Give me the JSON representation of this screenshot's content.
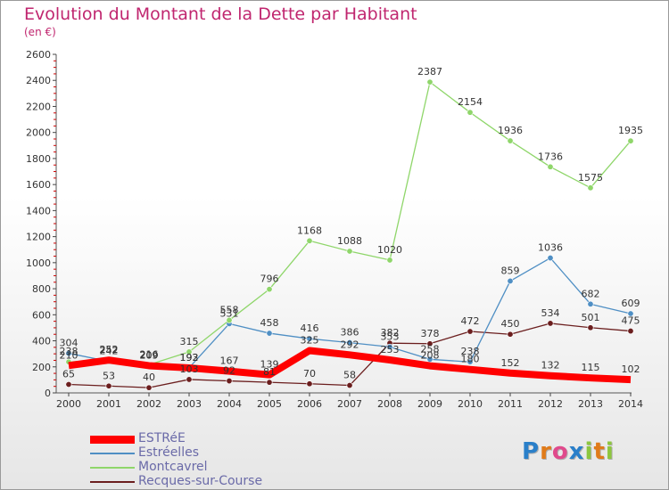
{
  "title": "Evolution du Montant de la Dette par Habitant",
  "unit": "(en €)",
  "logo_text": "Proxiti",
  "chart_data": {
    "type": "line",
    "x": [
      2000,
      2001,
      2002,
      2003,
      2004,
      2005,
      2006,
      2007,
      2008,
      2009,
      2010,
      2011,
      2012,
      2013,
      2014
    ],
    "ylim": [
      0,
      2600
    ],
    "yticks": [
      0,
      200,
      400,
      600,
      800,
      1000,
      1200,
      1400,
      1600,
      1800,
      2000,
      2200,
      2400,
      2600
    ],
    "grid": false,
    "legend_position": "bottom-left",
    "series": [
      {
        "name": "Recques-sur-Course",
        "color": "#6b1e1e",
        "values": [
          65,
          53,
          40,
          103,
          92,
          81,
          70,
          58,
          382,
          378,
          472,
          450,
          534,
          501,
          475
        ]
      },
      {
        "name": "Estréelles",
        "color": "#4f8fc4",
        "values": [
          304,
          242,
          209,
          193,
          531,
          458,
          416,
          386,
          353,
          258,
          238,
          859,
          1036,
          682,
          609
        ]
      },
      {
        "name": "Montcavrel",
        "color": "#8fd66a",
        "values": [
          238,
          252,
          216,
          315,
          558,
          796,
          1168,
          1088,
          1020,
          2387,
          2154,
          1936,
          1736,
          1575,
          1935
        ]
      },
      {
        "name": "ESTRéE",
        "color": "#ff0000",
        "values": [
          210,
          252,
          209,
          192,
          167,
          139,
          325,
          292,
          253,
          208,
          180,
          152,
          132,
          115,
          102
        ]
      }
    ],
    "labels": [
      {
        "series": 0,
        "values": [
          "65",
          "53",
          "40",
          "103",
          "92",
          "81",
          "70",
          "58",
          "382",
          "378",
          "472",
          "450",
          "534",
          "501",
          "475"
        ]
      },
      {
        "series": 1,
        "values": [
          "304",
          "242",
          "209",
          "193",
          "531",
          "458",
          "416",
          "386",
          "353",
          "258",
          "238",
          "859",
          "1036",
          "682",
          "609"
        ]
      },
      {
        "series": 2,
        "values": [
          "238",
          "252",
          "216",
          "315",
          "558",
          "796",
          "1168",
          "1088",
          "1020",
          "2387",
          "2154",
          "1936",
          "1736",
          "1575",
          "1935"
        ]
      },
      {
        "series": 3,
        "values": [
          "210",
          "252",
          "209",
          "192",
          "167",
          "139",
          "325",
          "292",
          "253",
          "208",
          "180",
          "152",
          "132",
          "115",
          "102"
        ]
      }
    ]
  },
  "legend": [
    {
      "label": "ESTRéE",
      "color": "#ff0000"
    },
    {
      "label": "Estréelles",
      "color": "#4f8fc4"
    },
    {
      "label": "Montcavrel",
      "color": "#8fd66a"
    },
    {
      "label": "Recques-sur-Course",
      "color": "#6b1e1e"
    }
  ]
}
